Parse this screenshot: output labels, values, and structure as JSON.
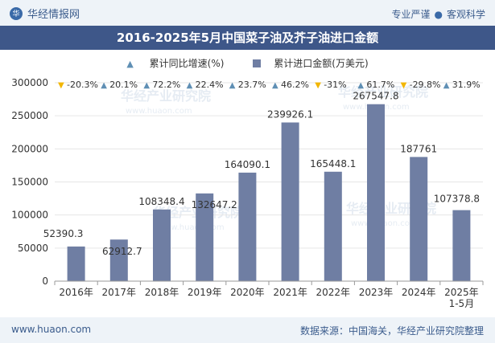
{
  "header": {
    "brand": "华经情报网",
    "brand_logo": "华",
    "tagline_left": "专业严谨",
    "tagline_right": "客观科学"
  },
  "footer": {
    "website": "www.huaon.com",
    "source": "数据来源：中国海关，华经产业研究院整理"
  },
  "watermark": "华经产业研究院",
  "watermark_url": "www.huaon.com",
  "chart_data": {
    "type": "bar",
    "title": "2016-2025年5月中国菜子油及芥子油进口金额",
    "legend": [
      "累计同比增速(%)",
      "累计进口金额(万美元)"
    ],
    "categories": [
      "2016年",
      "2017年",
      "2018年",
      "2019年",
      "2020年",
      "2021年",
      "2022年",
      "2023年",
      "2024年",
      "2025年\n1-5月"
    ],
    "series": [
      {
        "name": "累计进口金额(万美元)",
        "values": [
          52390.3,
          62912.7,
          108348.4,
          132647.2,
          164090.1,
          239926.1,
          165448.1,
          267547.8,
          187761,
          107378.8
        ]
      }
    ],
    "value_labels": [
      "52390.3",
      "62912.7",
      "108348.4",
      "132647.2",
      "164090.1",
      "239926.1",
      "165448.1",
      "267547.8",
      "187761",
      "107378.8"
    ],
    "growth": [
      {
        "text": "-20.3%",
        "dir": "down"
      },
      {
        "text": "20.1%",
        "dir": "up"
      },
      {
        "text": "72.2%",
        "dir": "up"
      },
      {
        "text": "22.4%",
        "dir": "up"
      },
      {
        "text": "23.7%",
        "dir": "up"
      },
      {
        "text": "46.2%",
        "dir": "up"
      },
      {
        "text": "-31%",
        "dir": "down"
      },
      {
        "text": "61.7%",
        "dir": "up"
      },
      {
        "text": "-29.8%",
        "dir": "down"
      },
      {
        "text": "31.9%",
        "dir": "up"
      }
    ],
    "yticks": [
      "0",
      "50000",
      "100000",
      "150000",
      "200000",
      "250000",
      "300000"
    ],
    "ylim": [
      0,
      300000
    ],
    "colors": {
      "bar": "#6f7ea3",
      "up": "#5f8fb4",
      "down": "#f2b600",
      "text": "#333333"
    }
  }
}
